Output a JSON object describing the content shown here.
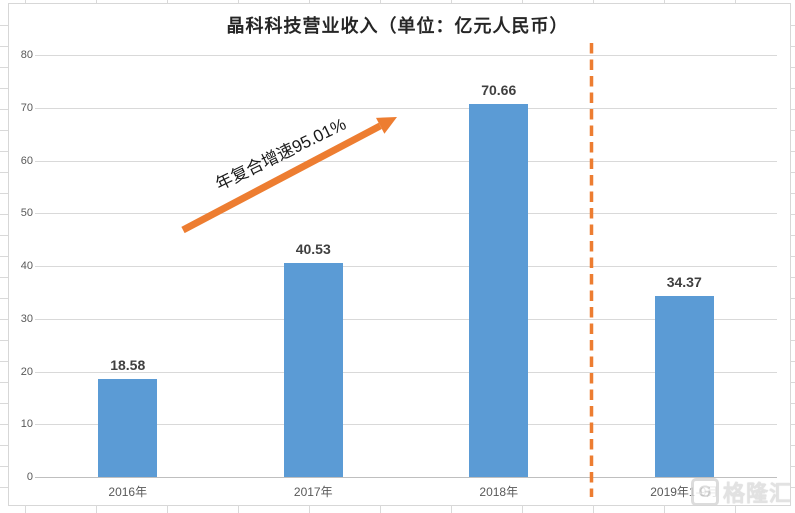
{
  "chart_data": {
    "type": "bar",
    "title": "晶科科技营业收入（单位：亿元人民币）",
    "categories": [
      "2016年",
      "2017年",
      "2018年",
      "2019年1-9月"
    ],
    "values": [
      18.58,
      40.53,
      70.66,
      34.37
    ],
    "data_labels": [
      "18.58",
      "40.53",
      "70.66",
      "34.37"
    ],
    "xlabel": "",
    "ylabel": "",
    "ylim": [
      0,
      80
    ],
    "yticks": [
      0,
      10,
      20,
      30,
      40,
      50,
      60,
      70,
      80
    ],
    "grid": "horizontal",
    "legend": "none",
    "annotation": {
      "text": "年复合增速95.01%",
      "style": "rotated text along rising orange arrow"
    },
    "separator": {
      "type": "vertical-dashed-line",
      "between": [
        "2018年",
        "2019年1-9月"
      ]
    },
    "colors": {
      "bar": "#5B9BD5",
      "accent": "#ED7D31",
      "grid": "#D9D9D9",
      "axis": "#BFBFBF",
      "tick_label": "#595959",
      "data_label": "#404040",
      "title": "#262626"
    }
  },
  "watermark": {
    "logo": "G",
    "text": "格隆汇"
  }
}
